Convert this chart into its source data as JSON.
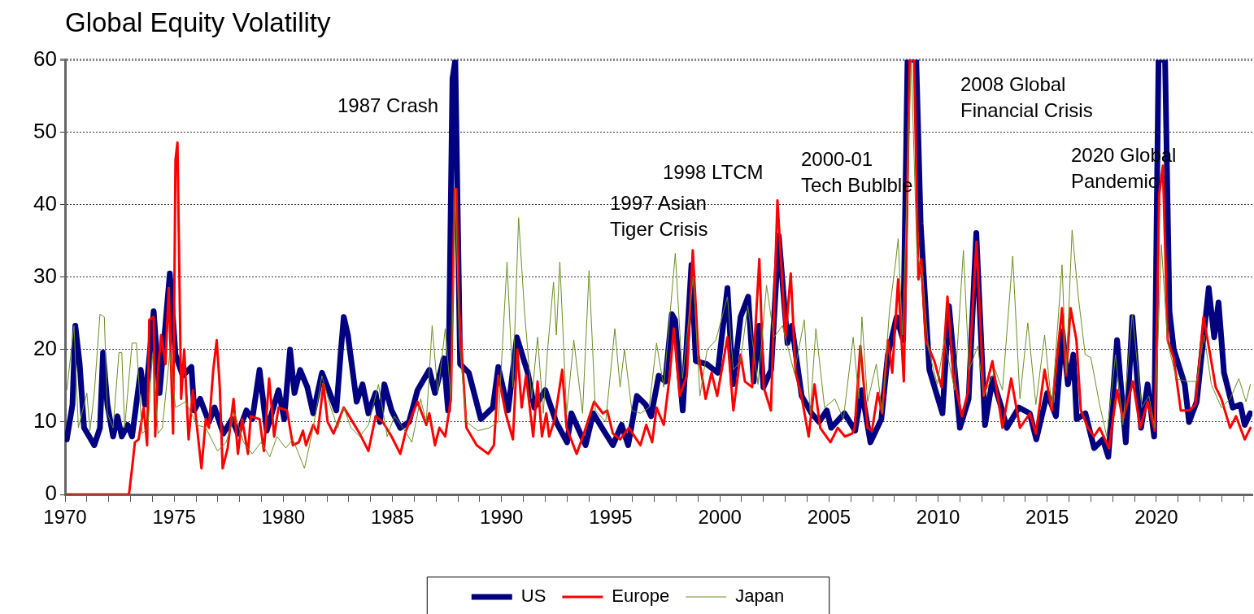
{
  "chart_data": {
    "type": "line",
    "title": "Global Equity Volatility",
    "xlim": [
      1970,
      2024.4
    ],
    "ylim": [
      0,
      60
    ],
    "xticks": [
      1970,
      {
        "value": 1971,
        "label": null
      },
      {
        "value": 1972,
        "label": null
      },
      {
        "value": 1973,
        "label": null
      },
      {
        "value": 1974,
        "label": null
      },
      1975,
      {
        "value": 1976,
        "label": null
      },
      {
        "value": 1977,
        "label": null
      },
      {
        "value": 1978,
        "label": null
      },
      {
        "value": 1979,
        "label": null
      },
      1980,
      {
        "value": 1981,
        "label": null
      },
      {
        "value": 1982,
        "label": null
      },
      {
        "value": 1983,
        "label": null
      },
      {
        "value": 1984,
        "label": null
      },
      1985,
      {
        "value": 1986,
        "label": null
      },
      {
        "value": 1987,
        "label": null
      },
      {
        "value": 1988,
        "label": null
      },
      {
        "value": 1989,
        "label": null
      },
      1990,
      {
        "value": 1991,
        "label": null
      },
      {
        "value": 1992,
        "label": null
      },
      {
        "value": 1993,
        "label": null
      },
      {
        "value": 1994,
        "label": null
      },
      1995,
      {
        "value": 1996,
        "label": null
      },
      {
        "value": 1997,
        "label": null
      },
      {
        "value": 1998,
        "label": null
      },
      {
        "value": 1999,
        "label": null
      },
      2000,
      {
        "value": 2001,
        "label": null
      },
      {
        "value": 2002,
        "label": null
      },
      {
        "value": 2003,
        "label": null
      },
      {
        "value": 2004,
        "label": null
      },
      2005,
      {
        "value": 2006,
        "label": null
      },
      {
        "value": 2007,
        "label": null
      },
      {
        "value": 2008,
        "label": null
      },
      {
        "value": 2009,
        "label": null
      },
      2010,
      {
        "value": 2011,
        "label": null
      },
      {
        "value": 2012,
        "label": null
      },
      {
        "value": 2013,
        "label": null
      },
      {
        "value": 2014,
        "label": null
      },
      2015,
      {
        "value": 2016,
        "label": null
      },
      {
        "value": 2017,
        "label": null
      },
      {
        "value": 2018,
        "label": null
      },
      {
        "value": 2019,
        "label": null
      },
      2020,
      {
        "value": 2021,
        "label": null
      },
      {
        "value": 2022,
        "label": null
      },
      {
        "value": 2023,
        "label": null
      },
      {
        "value": 2024,
        "label": null
      }
    ],
    "yticks": [
      0,
      10,
      20,
      30,
      40,
      50,
      60
    ],
    "grid": "y",
    "legend": "bottom",
    "marker": "none",
    "line_style": "solid",
    "series": [
      {
        "name": "US",
        "color": "#000080",
        "x": [
          1970.08,
          1970.34,
          1970.47,
          1970.67,
          1970.87,
          1971.34,
          1971.6,
          1971.74,
          1971.94,
          1972.2,
          1972.4,
          1972.6,
          1972.87,
          1973.07,
          1973.47,
          1973.66,
          1974.06,
          1974.33,
          1974.8,
          1975.06,
          1975.39,
          1975.79,
          1975.92,
          1976.19,
          1976.59,
          1976.85,
          1977.25,
          1977.65,
          1977.92,
          1978.31,
          1978.58,
          1978.91,
          1979.24,
          1979.78,
          1980.04,
          1980.31,
          1980.51,
          1980.77,
          1981.1,
          1981.37,
          1981.77,
          1982.03,
          1982.43,
          1982.63,
          1982.77,
          1982.96,
          1983.36,
          1983.63,
          1983.9,
          1984.23,
          1984.43,
          1984.63,
          1984.96,
          1985.36,
          1985.76,
          1986.15,
          1986.69,
          1986.95,
          1987.35,
          1987.55,
          1987.75,
          1987.88,
          1988.1,
          1988.5,
          1989.05,
          1989.6,
          1989.85,
          1990.3,
          1990.7,
          1991.2,
          1991.5,
          1992.0,
          1992.5,
          1993.0,
          1993.2,
          1993.85,
          1994.2,
          1994.6,
          1995.1,
          1995.5,
          1995.8,
          1996.2,
          1996.6,
          1996.85,
          1997.2,
          1997.5,
          1997.8,
          1997.95,
          1998.3,
          1998.7,
          1998.9,
          1999.4,
          1999.9,
          2000.35,
          2000.6,
          2000.95,
          2001.3,
          2001.55,
          2001.8,
          2002.0,
          2002.35,
          2002.7,
          2003.1,
          2003.3,
          2003.75,
          2004.2,
          2004.55,
          2004.9,
          2005.1,
          2005.71,
          2006.2,
          2006.5,
          2006.9,
          2007.4,
          2007.7,
          2008.1,
          2008.4,
          2008.6,
          2009.0,
          2009.2,
          2009.6,
          2010.2,
          2010.5,
          2011.0,
          2011.4,
          2011.75,
          2012.15,
          2012.5,
          2012.9,
          2013.15,
          2013.7,
          2014.2,
          2014.5,
          2015.0,
          2015.4,
          2015.7,
          2015.95,
          2016.2,
          2016.35,
          2016.75,
          2017.15,
          2017.55,
          2017.8,
          2018.2,
          2018.6,
          2018.9,
          2019.3,
          2019.6,
          2019.9,
          2020.1,
          2020.4,
          2020.6,
          2020.8,
          2021.3,
          2021.5,
          2021.85,
          2022.4,
          2022.65,
          2022.85,
          2023.1,
          2023.5,
          2023.85,
          2024.05,
          2024.3
        ],
        "values": [
          7.6,
          12.4,
          23.3,
          18,
          9.2,
          6.8,
          9.2,
          19.6,
          12.4,
          8,
          10.8,
          8,
          9.6,
          8,
          17.2,
          12.4,
          25.3,
          14,
          30.5,
          19.3,
          16.4,
          17.6,
          11.6,
          13.2,
          10,
          12,
          8.4,
          10.4,
          8.4,
          11.6,
          10.4,
          17.2,
          8.8,
          14.4,
          10.4,
          20,
          14,
          17.2,
          14.8,
          11.2,
          16.8,
          14.8,
          11.6,
          19.6,
          24.5,
          22,
          12.8,
          15.2,
          11.2,
          14,
          10,
          15.2,
          11.6,
          9.2,
          10,
          14.4,
          17.2,
          14,
          18.8,
          11.6,
          57.4,
          60,
          18,
          16.8,
          10.4,
          12,
          17.6,
          11.6,
          21.7,
          16.8,
          12,
          14.4,
          10,
          7.2,
          11.2,
          6.8,
          11.2,
          9.2,
          6.8,
          9.6,
          6.8,
          13.6,
          12.4,
          10.8,
          16.4,
          15.6,
          24.9,
          24.1,
          11.6,
          31.7,
          18.4,
          18,
          16.8,
          28.5,
          15.2,
          24.5,
          27.3,
          15.6,
          23.3,
          14.8,
          17.2,
          35.7,
          20.9,
          23.3,
          13.6,
          11.2,
          10,
          11.6,
          9.2,
          11.2,
          8.8,
          14.4,
          7.2,
          10.4,
          19.3,
          24.5,
          21.3,
          60,
          60,
          37.4,
          17.2,
          11.2,
          26,
          9.2,
          13.2,
          36.1,
          9.6,
          16,
          12,
          9.2,
          12,
          11.2,
          7.6,
          14,
          10.8,
          22.5,
          15.2,
          19.3,
          10.4,
          11.2,
          6.4,
          7.6,
          5.2,
          21.3,
          7.2,
          24.5,
          9.2,
          15.2,
          8,
          60,
          60,
          25.3,
          20,
          15.2,
          10,
          12.8,
          28.5,
          21.7,
          26.5,
          16.8,
          12,
          12.4,
          9.6,
          11.2
        ]
      },
      {
        "name": "Europe",
        "color": "#ff0000",
        "x": [
          1970.08,
          1972.93,
          1973.07,
          1973.2,
          1973.37,
          1973.6,
          1973.76,
          1973.86,
          1974.06,
          1974.13,
          1974.26,
          1974.4,
          1974.6,
          1974.75,
          1974.95,
          1975.06,
          1975.15,
          1975.32,
          1975.46,
          1975.66,
          1975.86,
          1976.25,
          1976.45,
          1976.59,
          1976.79,
          1976.95,
          1977.09,
          1977.22,
          1977.45,
          1977.72,
          1977.92,
          1978.11,
          1978.38,
          1978.51,
          1978.91,
          1979.11,
          1979.35,
          1979.58,
          1979.78,
          1980.17,
          1980.44,
          1980.71,
          1980.9,
          1981.04,
          1981.37,
          1981.57,
          1981.84,
          1982.03,
          1982.3,
          1982.77,
          1983.1,
          1983.5,
          1983.9,
          1984.23,
          1984.56,
          1984.96,
          1985.36,
          1985.62,
          1986.15,
          1986.55,
          1986.69,
          1986.95,
          1987.15,
          1987.42,
          1987.68,
          1987.85,
          1987.93,
          1988.06,
          1988.39,
          1988.86,
          1989.39,
          1989.65,
          1989.85,
          1990.19,
          1990.52,
          1990.72,
          1990.92,
          1991.12,
          1991.45,
          1991.65,
          1991.85,
          1992.05,
          1992.18,
          1992.44,
          1992.78,
          1992.98,
          1993.44,
          1993.77,
          1994.24,
          1994.64,
          1994.84,
          1995.1,
          1995.43,
          1995.83,
          1996.36,
          1996.63,
          1996.9,
          1997.1,
          1997.43,
          1997.69,
          1997.89,
          1998.16,
          1998.49,
          1998.76,
          1999.02,
          1999.35,
          1999.62,
          1999.88,
          2000.35,
          2000.62,
          2000.95,
          2001.15,
          2001.48,
          2001.81,
          2002.01,
          2002.34,
          2002.64,
          2003.01,
          2003.25,
          2003.47,
          2003.74,
          2004.07,
          2004.34,
          2004.6,
          2005.07,
          2005.4,
          2005.73,
          2006.06,
          2006.18,
          2006.44,
          2006.77,
          2006.97,
          2007.24,
          2007.44,
          2007.7,
          2007.9,
          2008.17,
          2008.43,
          2008.7,
          2008.9,
          2009.1,
          2009.23,
          2009.43,
          2009.83,
          2010.16,
          2010.43,
          2010.7,
          2011.09,
          2011.36,
          2011.76,
          2012.09,
          2012.49,
          2012.95,
          2013.35,
          2013.75,
          2014.21,
          2014.48,
          2014.88,
          2015.21,
          2015.68,
          2015.87,
          2016.07,
          2016.34,
          2016.54,
          2016.87,
          2017.14,
          2017.4,
          2017.83,
          2018.2,
          2018.47,
          2018.93,
          2019.26,
          2019.6,
          2019.93,
          2020.13,
          2020.3,
          2020.52,
          2020.79,
          2021.12,
          2021.52,
          2021.79,
          2022.16,
          2022.45,
          2022.72,
          2022.98,
          2023.38,
          2023.65,
          2024.05,
          2024.31
        ],
        "values": [
          0,
          0,
          3.6,
          7.2,
          7.6,
          12,
          6.8,
          24.1,
          24.5,
          8,
          17.2,
          22,
          18,
          28.5,
          8.4,
          46.2,
          48.6,
          13.2,
          20,
          7.6,
          14.4,
          3.6,
          10.4,
          9.2,
          17.2,
          21.3,
          14.8,
          3.6,
          6.4,
          13.2,
          5.6,
          10.4,
          5.6,
          10.8,
          10.4,
          6,
          16,
          8,
          12,
          11.6,
          6.8,
          7.2,
          8.8,
          6.8,
          9.6,
          8.4,
          15.2,
          10,
          8.4,
          12,
          10.4,
          8.4,
          6,
          10.8,
          10,
          8,
          5.6,
          8.8,
          12.8,
          9.6,
          11.2,
          6.8,
          9.2,
          8,
          13.2,
          42.2,
          42.2,
          25.3,
          9.2,
          6.8,
          5.6,
          6.8,
          16.4,
          11.2,
          7.6,
          20,
          12,
          16.4,
          8,
          15.6,
          8,
          11.2,
          8,
          10.4,
          17.2,
          9.2,
          5.6,
          8.4,
          12.8,
          11.2,
          11.6,
          8.4,
          7.6,
          9.2,
          6.8,
          9.6,
          7.2,
          12,
          9.6,
          16,
          22.9,
          13.6,
          16.4,
          33.7,
          19.3,
          13.2,
          16.8,
          13.6,
          21.7,
          11.6,
          19.3,
          15.6,
          14.8,
          32.5,
          14.8,
          11.6,
          40.6,
          21.7,
          30.5,
          16.8,
          13.6,
          8,
          15.2,
          9.2,
          7.2,
          9.2,
          8,
          8.4,
          9.2,
          20.5,
          9.2,
          8.8,
          14,
          11.2,
          21.3,
          16.8,
          29.7,
          15.6,
          60,
          60,
          29.7,
          32.5,
          21.3,
          18.4,
          14.8,
          27.3,
          16.4,
          10.8,
          14,
          34.9,
          13.6,
          18.4,
          9.2,
          16,
          9.2,
          11.2,
          8.4,
          17.2,
          11.6,
          25.7,
          16.4,
          25.7,
          21.3,
          11.6,
          9.2,
          8,
          9.2,
          6.4,
          14.4,
          10.4,
          15.6,
          9.2,
          12.8,
          8.8,
          41.4,
          45.4,
          21.3,
          18.9,
          11.6,
          11.6,
          12.4,
          24.5,
          19.6,
          14.8,
          13.2,
          9.2,
          10.8,
          7.6,
          9.2
        ]
      },
      {
        "name": "Japan",
        "color": "#6b8e23",
        "x": [
          1970.08,
          1970.41,
          1970.61,
          1971.0,
          1971.14,
          1971.34,
          1971.6,
          1971.8,
          1971.94,
          1972.2,
          1972.47,
          1972.6,
          1972.73,
          1973.07,
          1973.27,
          1973.53,
          1973.8,
          1974.0,
          1974.26,
          1974.46,
          1974.8,
          1975.06,
          1975.52,
          1976.05,
          1976.45,
          1976.98,
          1977.38,
          1977.78,
          1978.18,
          1978.58,
          1978.98,
          1979.38,
          1979.71,
          1980.11,
          1980.44,
          1980.97,
          1981.37,
          1981.77,
          1982.17,
          1982.5,
          1982.77,
          1983.1,
          1983.5,
          1983.9,
          1984.36,
          1984.76,
          1985.09,
          1985.49,
          1985.89,
          1986.29,
          1986.55,
          1986.82,
          1987.08,
          1987.42,
          1987.68,
          1987.88,
          1988.06,
          1988.39,
          1988.92,
          1989.45,
          1989.85,
          1990.25,
          1990.52,
          1990.78,
          1991.05,
          1991.38,
          1991.65,
          1991.91,
          1992.11,
          1992.38,
          1992.51,
          1992.67,
          1992.98,
          1993.31,
          1993.71,
          1994.01,
          1994.3,
          1994.77,
          1995.19,
          1995.43,
          1995.63,
          1995.97,
          1996.36,
          1996.76,
          1997.1,
          1997.43,
          1997.96,
          1998.29,
          1998.78,
          1999.09,
          1999.42,
          1999.82,
          2000.35,
          2000.62,
          2000.95,
          2001.28,
          2001.75,
          2002.14,
          2002.48,
          2002.87,
          2003.41,
          2003.87,
          2004.14,
          2004.4,
          2004.8,
          2005.27,
          2005.66,
          2006.11,
          2006.37,
          2006.51,
          2006.77,
          2007.17,
          2007.44,
          2007.77,
          2008.04,
          2008.17,
          2008.37,
          2008.77,
          2009.03,
          2009.3,
          2009.56,
          2009.96,
          2010.29,
          2010.76,
          2011.16,
          2011.42,
          2011.82,
          2012.09,
          2012.62,
          2012.95,
          2013.42,
          2013.75,
          2014.11,
          2014.48,
          2014.88,
          2015.21,
          2015.68,
          2015.87,
          2016.14,
          2016.41,
          2016.74,
          2017.0,
          2017.4,
          2017.73,
          2018.13,
          2018.47,
          2018.9,
          2019.33,
          2019.66,
          2019.93,
          2020.23,
          2020.52,
          2020.92,
          2021.39,
          2021.85,
          2022.19,
          2022.52,
          2022.98,
          2023.38,
          2023.78,
          2024.11,
          2024.31
        ],
        "values": [
          14.4,
          23.3,
          9.2,
          14,
          8.8,
          14,
          24.9,
          24.5,
          11.2,
          9.2,
          19.6,
          19.6,
          9.2,
          20.9,
          20.9,
          8.4,
          9.2,
          19.3,
          8.4,
          9.2,
          19.6,
          12,
          12.8,
          9.6,
          9.2,
          6,
          7.2,
          11.2,
          7.2,
          5.6,
          7.2,
          5.2,
          8,
          6.4,
          7.6,
          3.6,
          9.2,
          16.4,
          12,
          9.2,
          12,
          9.2,
          8,
          9.6,
          15.2,
          8,
          10.8,
          9.2,
          7.2,
          13.2,
          10,
          23.3,
          14,
          22.9,
          13.2,
          42.2,
          21.3,
          10,
          8.8,
          9.2,
          10,
          32.1,
          14.8,
          38.2,
          25.3,
          13.2,
          21.7,
          11.2,
          20,
          29.3,
          22,
          32.1,
          11.2,
          21.3,
          11.2,
          30.9,
          11.6,
          10,
          22.9,
          14.8,
          20,
          11.6,
          11.2,
          12,
          20.9,
          14.8,
          33.3,
          16,
          30.1,
          13.6,
          20,
          21.3,
          27.3,
          17.2,
          18.4,
          26.1,
          15.2,
          28.9,
          21.7,
          23.3,
          16.8,
          24.1,
          11.2,
          22.9,
          12,
          13.2,
          10.4,
          21.7,
          13.2,
          24.5,
          12.8,
          18,
          11.2,
          25.3,
          31.7,
          35.3,
          22,
          60,
          33.3,
          30.1,
          20,
          15.2,
          21.3,
          14.4,
          33.7,
          17.2,
          20.5,
          13.6,
          17.2,
          14.4,
          32.9,
          13.2,
          23.7,
          12.4,
          22,
          12,
          31.7,
          16.8,
          36.5,
          27.7,
          19.3,
          18.9,
          12.4,
          8,
          19.3,
          9.6,
          24.9,
          12,
          13.6,
          9.2,
          34.5,
          20.9,
          16,
          15.6,
          15.6,
          22,
          15.2,
          12,
          13.2,
          16,
          12.8,
          15.2
        ]
      }
    ],
    "annotations": [
      "1987 Crash",
      "1997 Asian\nTiger Crisis",
      "1998 LTCM",
      "2000-01\nTech Bublble",
      "2008 Global\nFinancial Crisis",
      "2020 Global\nPandemic"
    ]
  }
}
